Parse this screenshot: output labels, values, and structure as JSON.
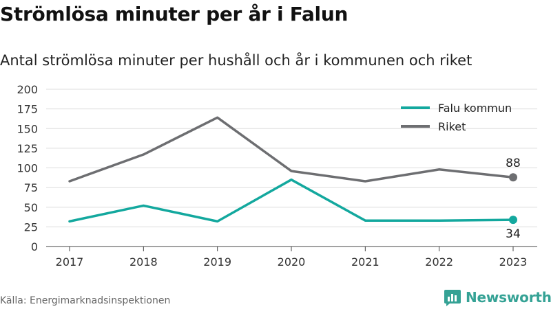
{
  "title": "Strömlösa minuter per år i Falun",
  "subtitle": "Antal strömlösa minuter per hushåll och år i kommunen och riket",
  "source": "Källa: Energimarknadsinspektionen",
  "brand": "Newsworthy",
  "chart_data": {
    "type": "line",
    "x": [
      "2017",
      "2018",
      "2019",
      "2020",
      "2021",
      "2022",
      "2023"
    ],
    "series": [
      {
        "name": "Falu kommun",
        "color": "#13a89e",
        "values": [
          32,
          52,
          32,
          85,
          33,
          33,
          34
        ],
        "end_label": "34"
      },
      {
        "name": "Riket",
        "color": "#6d6e71",
        "values": [
          83,
          117,
          164,
          96,
          83,
          98,
          88
        ],
        "end_label": "88"
      }
    ],
    "ylim": [
      0,
      200
    ],
    "yticks": [
      0,
      25,
      50,
      75,
      100,
      125,
      150,
      175,
      200
    ],
    "grid": true,
    "legend_position": "top-right"
  }
}
